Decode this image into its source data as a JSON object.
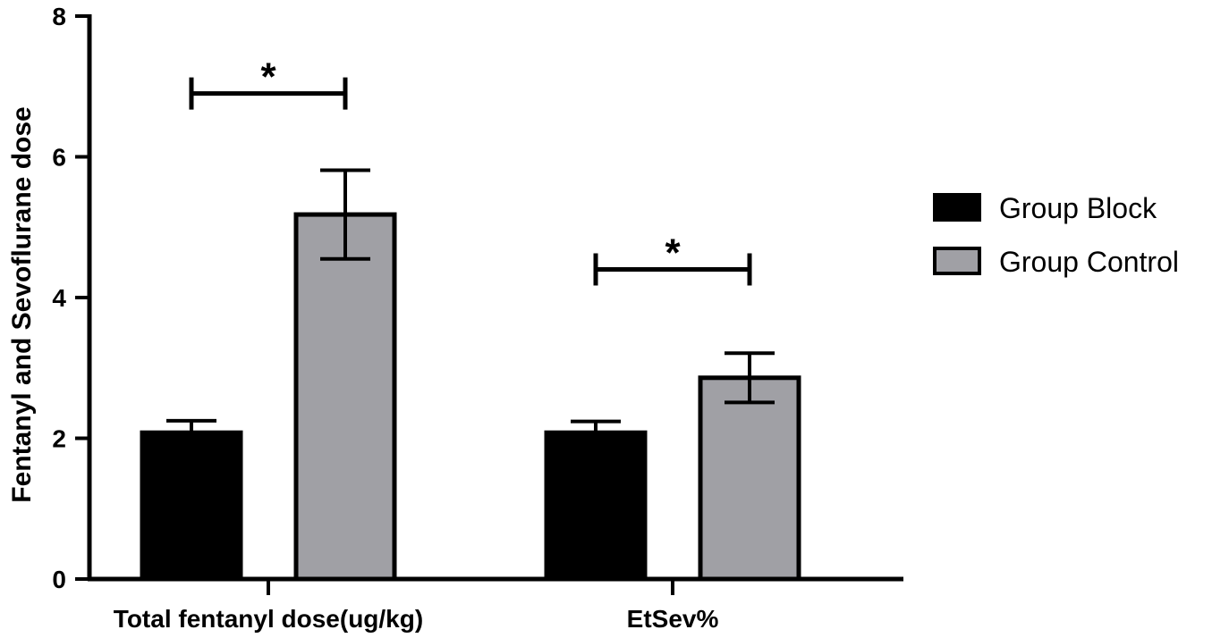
{
  "chart_data": {
    "type": "bar",
    "categories": [
      "Total fentanyl dose(ug/kg)",
      "EtSev%"
    ],
    "series": [
      {
        "name": "Group Block",
        "values": [
          2.08,
          2.08
        ],
        "errors": [
          0.17,
          0.16
        ],
        "color": "#000000"
      },
      {
        "name": "Group Control",
        "values": [
          5.18,
          2.86
        ],
        "errors": [
          0.63,
          0.35
        ],
        "color": "#a0a0a5"
      }
    ],
    "title": "",
    "xlabel": "",
    "ylabel": "Fentanyl and Sevoflurane dose",
    "ylim": [
      0,
      8
    ],
    "yticks": [
      "0",
      "2",
      "4",
      "6",
      "8"
    ],
    "legend_position": "right",
    "grid": false,
    "significance": [
      {
        "category_index": 0,
        "bracket_y": 6.9,
        "label": "*"
      },
      {
        "category_index": 1,
        "bracket_y": 4.4,
        "label": "*"
      }
    ]
  }
}
